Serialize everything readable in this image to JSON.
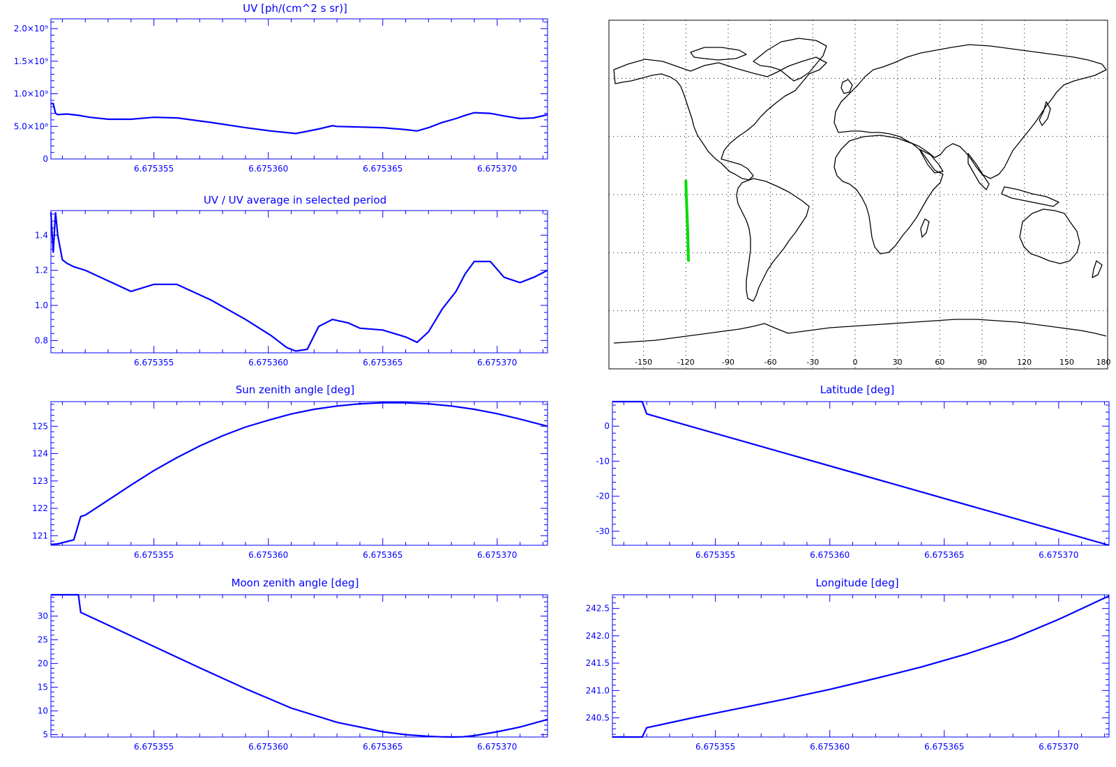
{
  "colors": {
    "axis": "#0000ff",
    "series": "#0000ff",
    "track": "#00dd00",
    "map": "#000000"
  },
  "chart_data": [
    {
      "type": "line",
      "title": "UV [ph/(cm^2 s sr)]",
      "xlim": [
        6.6753505,
        6.6753722
      ],
      "ylim": [
        0,
        2150000000.0
      ],
      "xticks": [
        "6.675355",
        "6.675360",
        "6.675365",
        "6.675370"
      ],
      "xtick_values": [
        6.675355,
        6.67536,
        6.675365,
        6.67537
      ],
      "yticks": [
        "0",
        "5.0×10⁸",
        "1.0×10⁹",
        "1.5×10⁹",
        "2.0×10⁹"
      ],
      "ytick_values": [
        0,
        500000000.0,
        1000000000.0,
        1500000000.0,
        2000000000.0
      ],
      "x": [
        6.6753505,
        6.6753506,
        6.6753507,
        6.6753508,
        6.6753512,
        6.6753517,
        6.6753522,
        6.675353,
        6.675354,
        6.675355,
        6.675356,
        6.6753575,
        6.675359,
        6.6753601,
        6.6753612,
        6.6753622,
        6.6753628,
        6.675363,
        6.675364,
        6.675365,
        6.675366,
        6.6753665,
        6.675367,
        6.6753676,
        6.6753682,
        6.6753686,
        6.675369,
        6.6753697,
        6.6753703,
        6.675371,
        6.6753716,
        6.6753722
      ],
      "y": [
        850000000.0,
        850000000.0,
        700000000.0,
        680000000.0,
        690000000.0,
        670000000.0,
        640000000.0,
        610000000.0,
        610000000.0,
        640000000.0,
        630000000.0,
        560000000.0,
        480000000.0,
        430000000.0,
        390000000.0,
        460000000.0,
        510000000.0,
        500000000.0,
        490000000.0,
        480000000.0,
        450000000.0,
        430000000.0,
        480000000.0,
        560000000.0,
        620000000.0,
        670000000.0,
        710000000.0,
        700000000.0,
        660000000.0,
        620000000.0,
        630000000.0,
        680000000.0
      ]
    },
    {
      "type": "line",
      "title": "UV / UV average in selected period",
      "xlim": [
        6.6753505,
        6.6753722
      ],
      "ylim": [
        0.73,
        1.54
      ],
      "xticks": [
        "6.675355",
        "6.675360",
        "6.675365",
        "6.675370"
      ],
      "xtick_values": [
        6.675355,
        6.67536,
        6.675365,
        6.67537
      ],
      "yticks": [
        "0.8",
        "1.0",
        "1.2",
        "1.4"
      ],
      "ytick_values": [
        0.8,
        1.0,
        1.2,
        1.4
      ],
      "x": [
        6.6753505,
        6.6753506,
        6.6753507,
        6.6753508,
        6.675351,
        6.6753512,
        6.6753515,
        6.675352,
        6.675353,
        6.675354,
        6.675355,
        6.675356,
        6.6753575,
        6.675359,
        6.6753601,
        6.6753608,
        6.6753612,
        6.6753617,
        6.6753622,
        6.6753628,
        6.6753635,
        6.675364,
        6.675365,
        6.675366,
        6.6753665,
        6.675367,
        6.6753676,
        6.6753682,
        6.6753686,
        6.675369,
        6.6753697,
        6.6753703,
        6.675371,
        6.6753716,
        6.6753722
      ],
      "y": [
        1.53,
        1.3,
        1.53,
        1.4,
        1.26,
        1.24,
        1.22,
        1.2,
        1.14,
        1.08,
        1.12,
        1.12,
        1.03,
        0.92,
        0.83,
        0.76,
        0.74,
        0.75,
        0.88,
        0.92,
        0.9,
        0.87,
        0.86,
        0.82,
        0.79,
        0.85,
        0.98,
        1.08,
        1.18,
        1.25,
        1.25,
        1.16,
        1.13,
        1.16,
        1.2
      ]
    },
    {
      "type": "line",
      "title": "Sun zenith angle [deg]",
      "xlim": [
        6.6753505,
        6.6753722
      ],
      "ylim": [
        120.65,
        125.9
      ],
      "xticks": [
        "6.675355",
        "6.675360",
        "6.675365",
        "6.675370"
      ],
      "xtick_values": [
        6.675355,
        6.67536,
        6.675365,
        6.67537
      ],
      "yticks": [
        "121",
        "122",
        "123",
        "124",
        "125"
      ],
      "ytick_values": [
        121,
        122,
        123,
        124,
        125
      ],
      "x": [
        6.6753505,
        6.6753508,
        6.6753515,
        6.6753518,
        6.675352,
        6.675353,
        6.675354,
        6.675355,
        6.675356,
        6.675357,
        6.675358,
        6.675359,
        6.67536,
        6.675361,
        6.675362,
        6.675363,
        6.675364,
        6.675365,
        6.675366,
        6.675367,
        6.675368,
        6.675369,
        6.67537,
        6.675371,
        6.6753722
      ],
      "y": [
        120.68,
        120.7,
        120.85,
        121.7,
        121.75,
        122.3,
        122.85,
        123.38,
        123.85,
        124.28,
        124.65,
        124.97,
        125.22,
        125.45,
        125.62,
        125.74,
        125.82,
        125.86,
        125.86,
        125.82,
        125.74,
        125.62,
        125.46,
        125.26,
        125.0
      ]
    },
    {
      "type": "line",
      "title": "Latitude [deg]",
      "xlim": [
        6.6753505,
        6.6753722
      ],
      "ylim": [
        -34,
        7
      ],
      "xticks": [
        "6.675355",
        "6.675360",
        "6.675365",
        "6.675370"
      ],
      "xtick_values": [
        6.675355,
        6.67536,
        6.675365,
        6.67537
      ],
      "yticks": [
        "0",
        "-10",
        "-20",
        "-30"
      ],
      "ytick_values": [
        0,
        -10,
        -20,
        -30
      ],
      "x": [
        6.6753505,
        6.6753518,
        6.675352,
        6.6753722
      ],
      "y": [
        7,
        7,
        3.5,
        -34
      ]
    },
    {
      "type": "line",
      "title": "Moon zenith angle [deg]",
      "xlim": [
        6.6753505,
        6.6753722
      ],
      "ylim": [
        4.5,
        34.5
      ],
      "xticks": [
        "6.675355",
        "6.675360",
        "6.675365",
        "6.675370"
      ],
      "xtick_values": [
        6.675355,
        6.67536,
        6.675365,
        6.67537
      ],
      "yticks": [
        "5",
        "10",
        "15",
        "20",
        "25",
        "30"
      ],
      "ytick_values": [
        5,
        10,
        15,
        20,
        25,
        30
      ],
      "x": [
        6.6753505,
        6.6753517,
        6.6753518,
        6.675353,
        6.675355,
        6.675357,
        6.675359,
        6.675361,
        6.675363,
        6.675365,
        6.675366,
        6.675367,
        6.6753675,
        6.675368,
        6.6753685,
        6.675369,
        6.67537,
        6.675371,
        6.6753722
      ],
      "y": [
        34.5,
        34.5,
        30.8,
        28.1,
        23.6,
        19.1,
        14.7,
        10.6,
        7.6,
        5.6,
        5.0,
        4.65,
        4.55,
        4.5,
        4.55,
        4.8,
        5.6,
        6.6,
        8.2
      ]
    },
    {
      "type": "line",
      "title": "Longitude [deg]",
      "xlim": [
        6.6753505,
        6.6753722
      ],
      "ylim": [
        240.15,
        242.75
      ],
      "xticks": [
        "6.675355",
        "6.675360",
        "6.675365",
        "6.675370"
      ],
      "xtick_values": [
        6.675355,
        6.67536,
        6.675365,
        6.67537
      ],
      "yticks": [
        "240.5",
        "241.0",
        "241.5",
        "242.0",
        "242.5"
      ],
      "ytick_values": [
        240.5,
        241.0,
        241.5,
        242.0,
        242.5
      ],
      "x": [
        6.6753505,
        6.6753518,
        6.675352,
        6.675354,
        6.675356,
        6.675358,
        6.67536,
        6.675362,
        6.675364,
        6.675366,
        6.675368,
        6.67537,
        6.6753722
      ],
      "y": [
        240.15,
        240.15,
        240.32,
        240.5,
        240.67,
        240.84,
        241.02,
        241.22,
        241.43,
        241.67,
        241.95,
        242.3,
        242.73
      ]
    }
  ],
  "map": {
    "xticks": [
      "-150",
      "-120",
      "-90",
      "-60",
      "-30",
      "0",
      "30",
      "60",
      "90",
      "120",
      "150",
      "180"
    ],
    "xtick_values": [
      -150,
      -120,
      -90,
      -60,
      -30,
      0,
      30,
      60,
      90,
      120,
      150,
      180
    ],
    "lon_range": [
      -180,
      180
    ],
    "lat_range": [
      -90,
      90
    ],
    "track": [
      [
        -120,
        7
      ],
      [
        -119.7,
        0
      ],
      [
        -119.2,
        -10
      ],
      [
        -118.7,
        -20
      ],
      [
        -118.2,
        -34
      ]
    ]
  }
}
